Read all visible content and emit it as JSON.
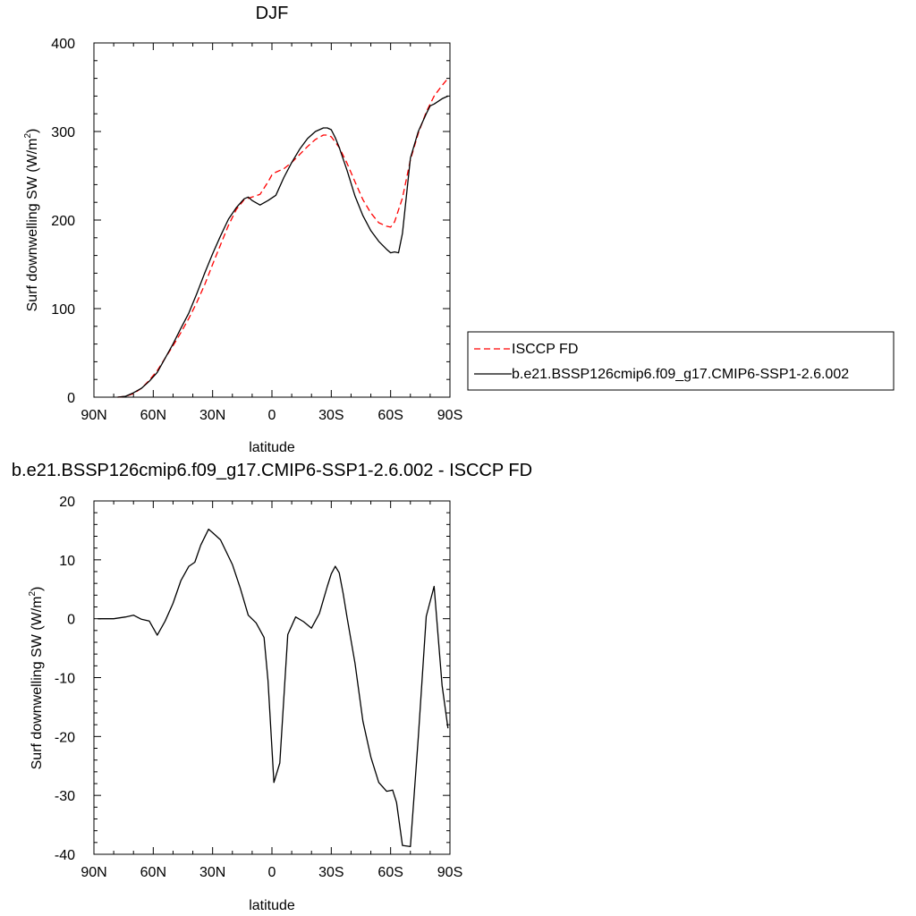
{
  "chart_data": [
    {
      "type": "line",
      "title": "DJF",
      "xlabel": "latitude",
      "ylabel": "Surf downwelling SW (W/m",
      "ylabel_sup": "2",
      "ylabel_close": ")",
      "xlim": [
        90,
        -90
      ],
      "ylim": [
        0,
        400
      ],
      "xticks": [
        90,
        60,
        30,
        0,
        -30,
        -60,
        -90
      ],
      "xtick_labels": [
        "90N",
        "60N",
        "30N",
        "0",
        "30S",
        "60S",
        "90S"
      ],
      "yticks": [
        0,
        100,
        200,
        300,
        400
      ],
      "ytick_labels": [
        "0",
        "100",
        "200",
        "300",
        "400"
      ],
      "grid": false,
      "legend_position": "outside-right",
      "series": [
        {
          "name": "ISCCP FD",
          "color": "#ff0000",
          "dash": "dashed",
          "x": [
            78,
            74,
            70,
            66,
            62,
            58,
            54,
            50,
            46,
            42,
            38,
            34,
            30,
            26,
            22,
            18,
            14,
            10,
            6,
            2,
            0,
            -2,
            -6,
            -10,
            -14,
            -18,
            -22,
            -26,
            -28,
            -30,
            -34,
            -38,
            -42,
            -46,
            -50,
            -54,
            -58,
            -60,
            -62,
            -66,
            -70,
            -74,
            -78,
            -82,
            -86,
            -89
          ],
          "y": [
            0,
            1,
            4,
            10,
            19,
            30,
            44,
            58,
            73,
            89,
            107,
            127,
            150,
            172,
            194,
            212,
            223,
            226,
            229,
            243,
            251,
            254,
            258,
            265,
            274,
            283,
            291,
            296,
            296,
            294,
            282,
            264,
            243,
            223,
            208,
            197,
            193,
            192,
            198,
            225,
            268,
            298,
            322,
            340,
            352,
            360
          ]
        },
        {
          "name": "b.e21.BSSP126cmip6.f09_g17.CMIP6-SSP1-2.6.002",
          "color": "#000000",
          "dash": "solid",
          "x": [
            78,
            74,
            70,
            66,
            62,
            58,
            54,
            50,
            46,
            42,
            38,
            34,
            30,
            26,
            22,
            18,
            14,
            12,
            10,
            6,
            2,
            -2,
            -6,
            -10,
            -14,
            -18,
            -22,
            -26,
            -28,
            -30,
            -32,
            -34,
            -38,
            -42,
            -46,
            -50,
            -54,
            -58,
            -60,
            -62,
            -64,
            -66,
            -70,
            -74,
            -78,
            -80,
            -82,
            -86,
            -89
          ],
          "y": [
            0,
            1,
            5,
            10,
            18,
            28,
            44,
            60,
            78,
            95,
            117,
            140,
            162,
            182,
            201,
            214,
            224,
            226,
            222,
            217,
            222,
            228,
            248,
            265,
            280,
            292,
            300,
            304,
            304,
            302,
            293,
            282,
            256,
            227,
            205,
            188,
            176,
            167,
            163,
            164,
            163,
            185,
            270,
            300,
            320,
            329,
            331,
            337,
            340
          ]
        }
      ]
    },
    {
      "type": "line",
      "title": "b.e21.BSSP126cmip6.f09_g17.CMIP6-SSP1-2.6.002 - ISCCP FD",
      "xlabel": "latitude",
      "ylabel": "Surf downwelling SW (W/m",
      "ylabel_sup": "2",
      "ylabel_close": ")",
      "xlim": [
        90,
        -90
      ],
      "ylim": [
        -40,
        20
      ],
      "xticks": [
        90,
        60,
        30,
        0,
        -30,
        -60,
        -90
      ],
      "xtick_labels": [
        "90N",
        "60N",
        "30N",
        "0",
        "30S",
        "60S",
        "90S"
      ],
      "yticks": [
        -40,
        -30,
        -20,
        -10,
        0,
        10,
        20
      ],
      "ytick_labels": [
        "-40",
        "-30",
        "-20",
        "-10",
        "0",
        "10",
        "20"
      ],
      "grid": false,
      "series": [
        {
          "color": "#000000",
          "dash": "solid",
          "x": [
            88,
            80,
            74,
            70,
            66,
            62,
            58,
            54,
            50,
            46,
            42,
            39,
            36,
            32,
            30,
            26,
            20,
            16,
            12,
            8,
            4,
            2,
            -1,
            -4,
            -8,
            -12,
            -16,
            -20,
            -24,
            -26,
            -28,
            -30,
            -32,
            -34,
            -36,
            -38,
            -42,
            -46,
            -50,
            -54,
            -58,
            -61,
            -63,
            -66,
            -70,
            -74,
            -78,
            -82,
            -86,
            -89
          ],
          "y": [
            0,
            0,
            0.3,
            0.6,
            -0.1,
            -0.4,
            -2.8,
            -0.4,
            2.6,
            6.5,
            8.9,
            9.6,
            12.5,
            15.2,
            14.6,
            13.4,
            9.2,
            5.2,
            0.6,
            -0.7,
            -3.2,
            -10.5,
            -27.8,
            -24.5,
            -2.7,
            0.3,
            -0.5,
            -1.6,
            0.9,
            3.2,
            5.5,
            7.6,
            8.9,
            7.8,
            4.3,
            0.2,
            -7.6,
            -17.4,
            -23.5,
            -27.8,
            -29.3,
            -29.1,
            -31.2,
            -38.5,
            -38.7,
            -20.2,
            0.4,
            5.5,
            -11.3,
            -18.6
          ]
        }
      ]
    }
  ]
}
